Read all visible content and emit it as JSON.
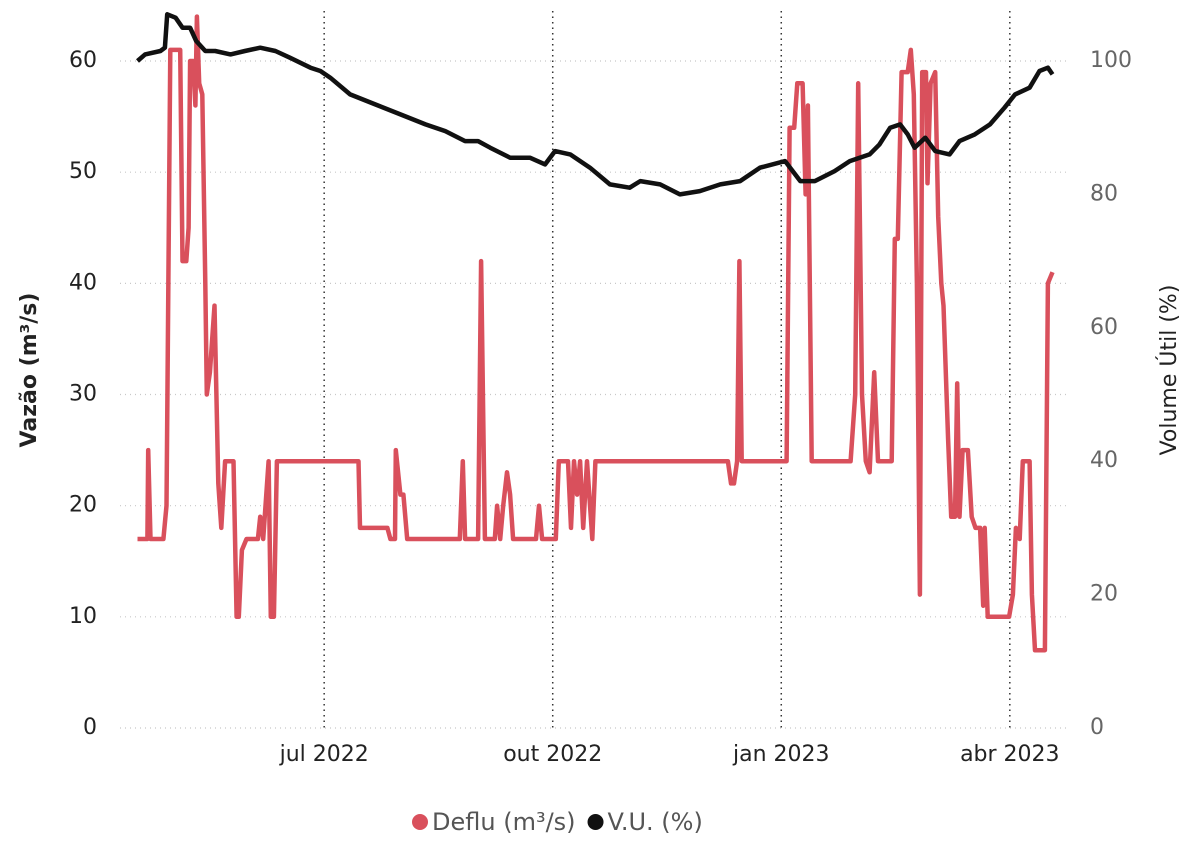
{
  "chart_data": {
    "type": "line",
    "ylabel": "Vazão (m³/s)",
    "y2label": "Volume Útil (%)",
    "xlim": [
      4.32,
      16.79
    ],
    "xticks": [
      {
        "value": 7,
        "label": "jul 2022"
      },
      {
        "value": 10,
        "label": "out 2022"
      },
      {
        "value": 13,
        "label": "jan 2023"
      },
      {
        "value": 16,
        "label": "abr 2023"
      }
    ],
    "ylim": [
      0,
      64.5
    ],
    "yticks": [
      0,
      10,
      20,
      30,
      40,
      50,
      60
    ],
    "y2lim": [
      0,
      107.5
    ],
    "y2ticks": [
      0,
      20,
      40,
      60,
      80,
      100
    ],
    "grid": true,
    "legend": "bottom",
    "series": [
      {
        "name": "Deflu (m³/s)",
        "color": "#d9505c",
        "x": [
          4.55,
          4.68,
          4.69,
          4.72,
          4.89,
          4.93,
          4.98,
          5.11,
          5.14,
          5.19,
          5.22,
          5.24,
          5.28,
          5.31,
          5.33,
          5.36,
          5.4,
          5.44,
          5.46,
          5.5,
          5.56,
          5.61,
          5.65,
          5.7,
          5.81,
          5.85,
          5.88,
          5.92,
          5.98,
          6.13,
          6.16,
          6.2,
          6.27,
          6.3,
          6.34,
          6.38,
          7.45,
          7.47,
          7.83,
          7.87,
          7.93,
          7.94,
          8.0,
          8.04,
          8.09,
          8.78,
          8.82,
          8.85,
          9.02,
          9.06,
          9.11,
          9.24,
          9.27,
          9.31,
          9.35,
          9.4,
          9.44,
          9.48,
          9.78,
          9.82,
          9.86,
          10.04,
          10.08,
          10.2,
          10.24,
          10.28,
          10.32,
          10.36,
          10.4,
          10.45,
          10.52,
          10.56,
          12.3,
          12.34,
          12.38,
          12.42,
          12.45,
          12.48,
          13.07,
          13.11,
          13.17,
          13.21,
          13.28,
          13.32,
          13.35,
          13.4,
          13.91,
          13.97,
          14.01,
          14.06,
          14.11,
          14.16,
          14.22,
          14.27,
          14.45,
          14.49,
          14.53,
          14.58,
          14.66,
          14.7,
          14.74,
          14.78,
          14.82,
          14.85,
          14.9,
          14.92,
          14.96,
          15.02,
          15.06,
          15.1,
          15.13,
          15.19,
          15.23,
          15.28,
          15.31,
          15.34,
          15.38,
          15.45,
          15.5,
          15.55,
          15.61,
          15.65,
          15.67,
          15.71,
          15.99,
          16.04,
          16.08,
          16.13,
          16.17,
          16.26,
          16.29,
          16.33,
          16.46,
          16.5,
          16.56
        ],
        "values": [
          17,
          17,
          25,
          17,
          17,
          20,
          61,
          61,
          42,
          42,
          45,
          60,
          60,
          56,
          64,
          58,
          57,
          40,
          30,
          32,
          38,
          22,
          18,
          24,
          24,
          10,
          10,
          16,
          17,
          17,
          19,
          17,
          24,
          10,
          10,
          24,
          24,
          18,
          18,
          17,
          17,
          25,
          21,
          21,
          17,
          17,
          24,
          17,
          17,
          42,
          17,
          17,
          20,
          17,
          20,
          23,
          21,
          17,
          17,
          20,
          17,
          17,
          24,
          24,
          18,
          24,
          21,
          24,
          18,
          24,
          17,
          24,
          24,
          22,
          22,
          24,
          42,
          24,
          24,
          54,
          54,
          58,
          58,
          48,
          56,
          24,
          24,
          30,
          58,
          30,
          24,
          23,
          32,
          24,
          24,
          44,
          44,
          59,
          59,
          61,
          57,
          40,
          12,
          59,
          59,
          49,
          58,
          59,
          46,
          40,
          38,
          26,
          19,
          19,
          31,
          19,
          25,
          25,
          19,
          18,
          18,
          11,
          18,
          10,
          10,
          12,
          18,
          17,
          24,
          24,
          12,
          7,
          7,
          40,
          41
        ]
      },
      {
        "name": "V.U. (%)",
        "color": "#111111",
        "axis": "y2",
        "x": [
          4.55,
          4.65,
          4.85,
          4.91,
          4.94,
          5.05,
          5.14,
          5.24,
          5.32,
          5.44,
          5.57,
          5.77,
          5.96,
          6.16,
          6.36,
          6.55,
          6.82,
          6.95,
          7.08,
          7.34,
          7.67,
          8.0,
          8.33,
          8.59,
          8.85,
          9.02,
          9.18,
          9.44,
          9.7,
          9.9,
          10.03,
          10.23,
          10.49,
          10.75,
          11.01,
          11.15,
          11.41,
          11.67,
          11.93,
          12.2,
          12.46,
          12.72,
          13.05,
          13.25,
          13.44,
          13.7,
          13.9,
          14.16,
          14.29,
          14.43,
          14.56,
          14.66,
          14.75,
          14.89,
          15.02,
          15.21,
          15.34,
          15.54,
          15.74,
          15.93,
          16.07,
          16.26,
          16.39,
          16.5,
          16.56
        ],
        "values": [
          100,
          101,
          101.5,
          102,
          107,
          106.5,
          105,
          105,
          103,
          101.5,
          101.5,
          101,
          101.5,
          102,
          101.5,
          100.5,
          99,
          98.5,
          97.5,
          95,
          93.5,
          92,
          90.5,
          89.5,
          88,
          88,
          87,
          85.5,
          85.5,
          84.5,
          86.5,
          86,
          84,
          81.5,
          81,
          82,
          81.5,
          80,
          80.5,
          81.5,
          82,
          84,
          85,
          82,
          82,
          83.5,
          85,
          86,
          87.5,
          90,
          90.5,
          89,
          87,
          88.5,
          86.5,
          86,
          88,
          89,
          90.5,
          93,
          95,
          96,
          98.5,
          99,
          98
        ]
      }
    ]
  }
}
